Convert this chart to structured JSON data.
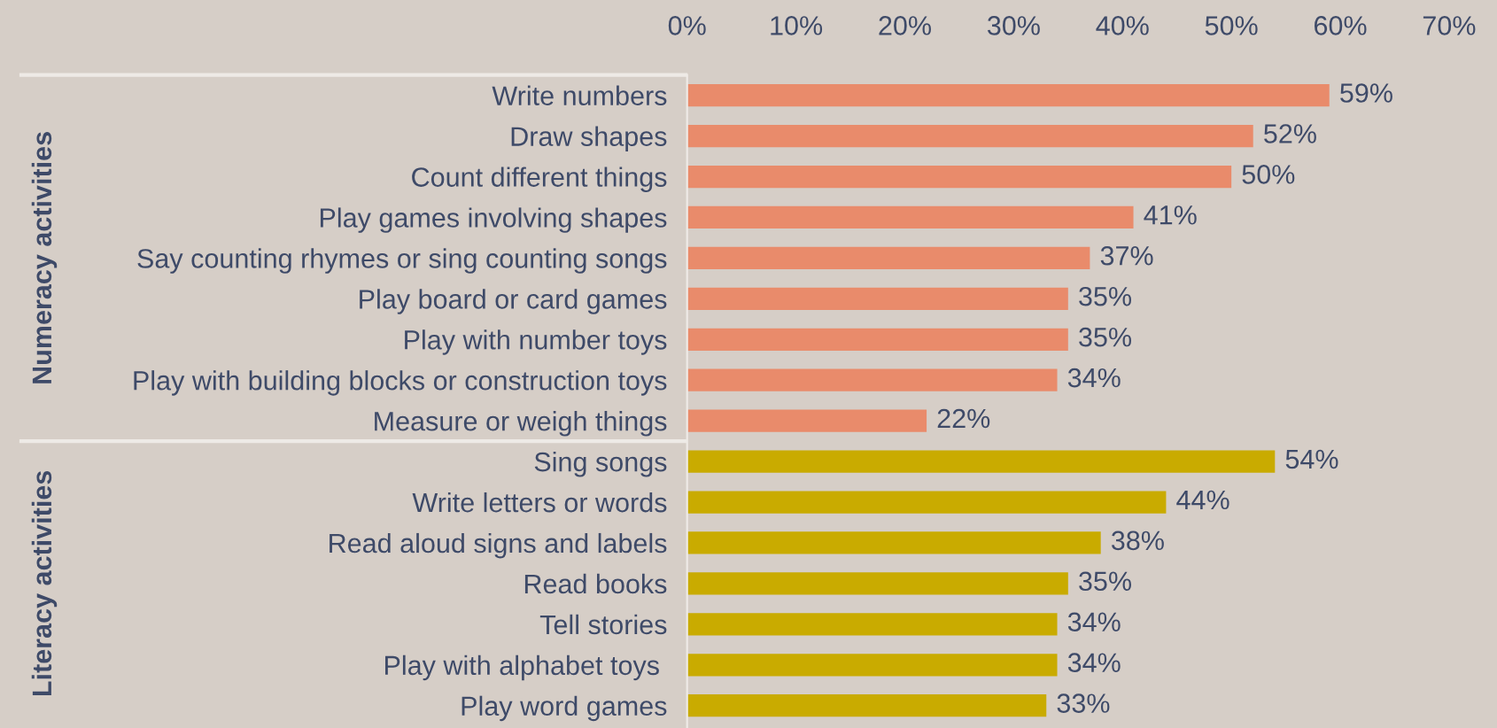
{
  "chart_data": {
    "type": "bar",
    "orientation": "horizontal",
    "categories": [
      "Write numbers",
      "Draw shapes",
      "Count different things",
      "Play games involving shapes",
      "Say counting rhymes or sing counting songs",
      "Play board or card games",
      "Play with number toys",
      "Play with building blocks or construction toys",
      "Measure or weigh things",
      "Sing songs",
      "Write letters or words",
      "Read aloud signs and labels",
      "Read books",
      "Tell stories",
      "Play with alphabet toys ",
      "Play word games"
    ],
    "values": [
      59,
      52,
      50,
      41,
      37,
      35,
      35,
      34,
      22,
      54,
      44,
      38,
      35,
      34,
      34,
      33
    ],
    "value_labels": [
      "59%",
      "52%",
      "50%",
      "41%",
      "37%",
      "35%",
      "35%",
      "34%",
      "22%",
      "54%",
      "44%",
      "38%",
      "35%",
      "34%",
      "34%",
      "33%"
    ],
    "colors": [
      "#e98b6b",
      "#e98b6b",
      "#e98b6b",
      "#e98b6b",
      "#e98b6b",
      "#e98b6b",
      "#e98b6b",
      "#e98b6b",
      "#e98b6b",
      "#c9ab00",
      "#c9ab00",
      "#c9ab00",
      "#c9ab00",
      "#c9ab00",
      "#c9ab00",
      "#c9ab00"
    ],
    "xlim": [
      0,
      70
    ],
    "xticks": [
      {
        "value": 0,
        "label": "0%"
      },
      {
        "value": 10,
        "label": "10%"
      },
      {
        "value": 20,
        "label": "20%"
      },
      {
        "value": 30,
        "label": "30%"
      },
      {
        "value": 40,
        "label": "40%"
      },
      {
        "value": 50,
        "label": "50%"
      },
      {
        "value": 60,
        "label": "60%"
      },
      {
        "value": 70,
        "label": "70%"
      }
    ],
    "annotations": [
      "Numeracy activities",
      "Literacy activities"
    ],
    "grid": false,
    "legend": false
  }
}
